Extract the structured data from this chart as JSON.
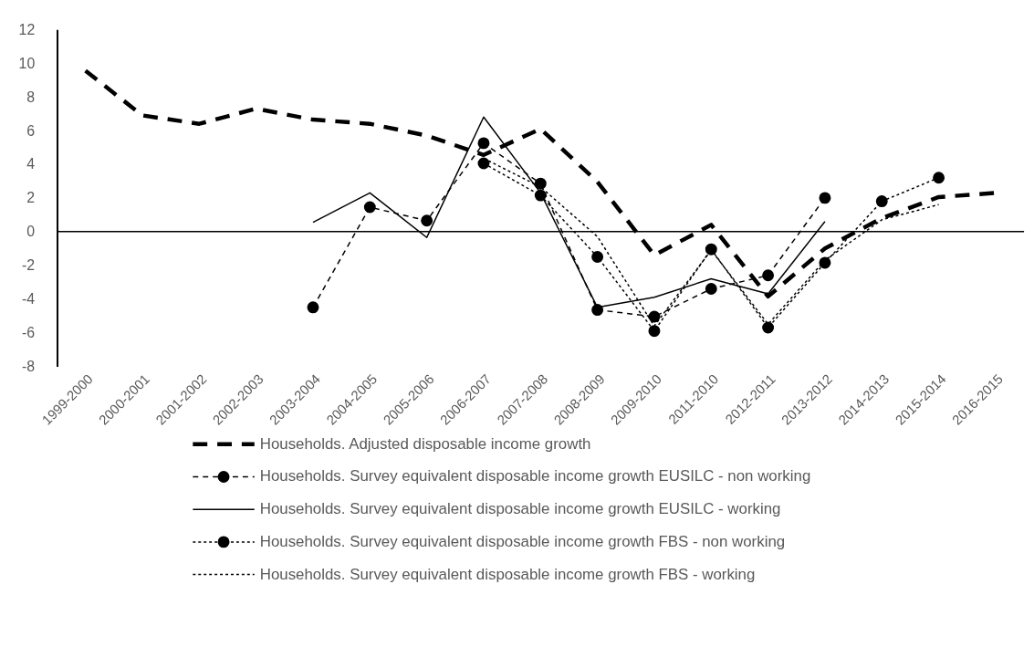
{
  "chart_data": {
    "type": "line",
    "categories": [
      "1999-2000",
      "2000-2001",
      "2001-2002",
      "2002-2003",
      "2003-2004",
      "2004-2005",
      "2005-2006",
      "2006-2007",
      "2007-2008",
      "2008-2009",
      "2009-2010",
      "2011-2010",
      "2012-2011",
      "2013-2012",
      "2014-2013",
      "2015-2014",
      "2016-2015"
    ],
    "ylim": [
      -8,
      12
    ],
    "yticks": [
      -8,
      -6,
      -4,
      -2,
      0,
      2,
      4,
      6,
      8,
      10,
      12
    ],
    "grid": false,
    "legend": "bottom",
    "ref_lines": [
      {
        "axis": "y",
        "value": 0,
        "color": "#000000",
        "line_style": "solid"
      }
    ],
    "series": [
      {
        "name": "Households. Adjusted disposable income growth",
        "color": "#000000",
        "line_style": "dashed",
        "marker": "none",
        "values": [
          9.55,
          6.9,
          6.4,
          7.3,
          6.65,
          6.4,
          5.7,
          4.55,
          6.1,
          2.95,
          -1.4,
          0.4,
          -3.85,
          -1.0,
          0.8,
          2.05,
          2.3
        ]
      },
      {
        "name": "Households. Survey equivalent disposable income growth EUSILC - non working",
        "color": "#000000",
        "line_style": "dashed",
        "marker": "circle",
        "values": [
          null,
          null,
          null,
          null,
          -4.5,
          1.45,
          0.65,
          5.25,
          2.85,
          -4.65,
          -5.05,
          -3.4,
          -2.6,
          2.0,
          null,
          null,
          null
        ]
      },
      {
        "name": "Households. Survey equivalent disposable income growth EUSILC -  working",
        "color": "#000000",
        "line_style": "solid",
        "marker": "none",
        "values": [
          null,
          null,
          null,
          null,
          0.55,
          2.3,
          -0.35,
          6.8,
          2.3,
          -4.5,
          -3.9,
          -2.8,
          -3.7,
          0.6,
          null,
          null,
          null
        ]
      },
      {
        "name": "Households. Survey equivalent disposable income growth FBS - non working",
        "color": "#000000",
        "line_style": "dotted",
        "marker": "circle",
        "values": [
          null,
          null,
          null,
          null,
          null,
          null,
          null,
          4.05,
          2.15,
          -1.5,
          -5.9,
          -1.05,
          -5.7,
          -1.85,
          1.8,
          3.2,
          null
        ]
      },
      {
        "name": "Households. Survey equivalent disposable income growth FBS -  working",
        "color": "#000000",
        "line_style": "dotted",
        "marker": "none",
        "values": [
          null,
          null,
          null,
          null,
          null,
          null,
          null,
          4.35,
          2.65,
          -0.3,
          -5.6,
          -1.1,
          -5.5,
          -1.7,
          0.7,
          1.6,
          null
        ]
      }
    ]
  }
}
